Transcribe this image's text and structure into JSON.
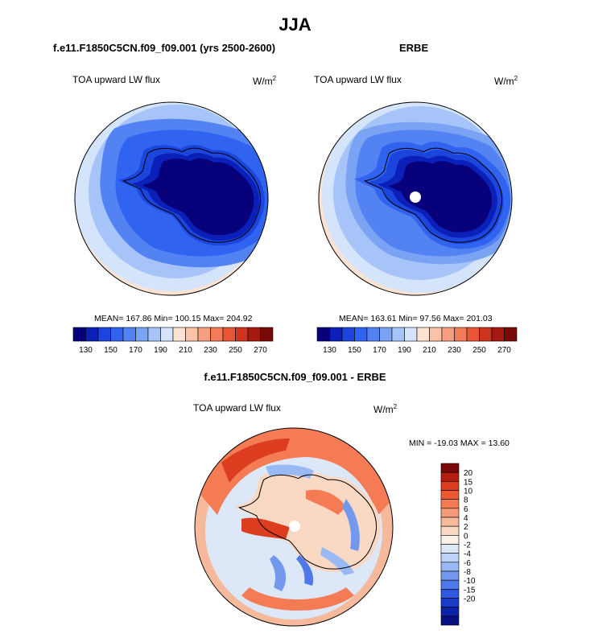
{
  "figure": {
    "season": "JJA",
    "model_title": "f.e11.F1850C5CN.f09_f09.001 (yrs 2500-2600)",
    "obs_title": "ERBE",
    "diff_title": "f.e11.F1850C5CN.f09_f09.001 - ERBE"
  },
  "panels": {
    "model": {
      "variable": "TOA upward LW flux",
      "units": "W/m",
      "units_exp": "2",
      "stats": "MEAN= 167.86  Min= 100.15  Max= 204.92"
    },
    "obs": {
      "variable": "TOA upward LW flux",
      "units": "W/m",
      "units_exp": "2",
      "stats": "MEAN= 163.61  Min=  97.56  Max= 201.03"
    },
    "diff": {
      "variable": "TOA upward LW flux",
      "units": "W/m",
      "units_exp": "2",
      "stats": "MIN = -19.03 MAX =  13.60"
    }
  },
  "colorbar_abs": {
    "colors": [
      "#08007a",
      "#0a20b8",
      "#1b45dc",
      "#2f63f0",
      "#5383f2",
      "#7ba3f4",
      "#a7c4f8",
      "#d4e5fb",
      "#fbe2d3",
      "#f8c3a7",
      "#f59f80",
      "#f27c59",
      "#e85635",
      "#cd3520",
      "#a51a10",
      "#7a0808"
    ],
    "tick_labels": [
      "130",
      "150",
      "170",
      "190",
      "210",
      "230",
      "250",
      "270"
    ]
  },
  "colorbar_diff": {
    "colors": [
      "#7a0808",
      "#b51c10",
      "#dc3d1e",
      "#ed5a32",
      "#f47b54",
      "#f59a78",
      "#f7b99c",
      "#f9d9c4",
      "#fbf0e6",
      "#dce8f8",
      "#bcd3f6",
      "#98b9f3",
      "#7399ef",
      "#4f78ea",
      "#2e58e0",
      "#1a3cc8",
      "#0d22a8",
      "#06107e"
    ],
    "tick_labels": [
      "20",
      "15",
      "10",
      "8",
      "6",
      "4",
      "2",
      "0",
      "-2",
      "-4",
      "-6",
      "-8",
      "-10",
      "-15",
      "-20"
    ]
  },
  "map_colors": {
    "deep_blue": "#08007a",
    "navy": "#0a20b8",
    "blue": "#1b45dc",
    "mid_blue": "#2f63f0",
    "light_blue": "#7ba3f4",
    "pale_blue": "#a7c4f8",
    "very_pale_blue": "#d4e5fb",
    "peach": "#fbe2d3",
    "red": "#dc3d1e",
    "orange": "#f47b54",
    "light_orange": "#f7b99c"
  }
}
